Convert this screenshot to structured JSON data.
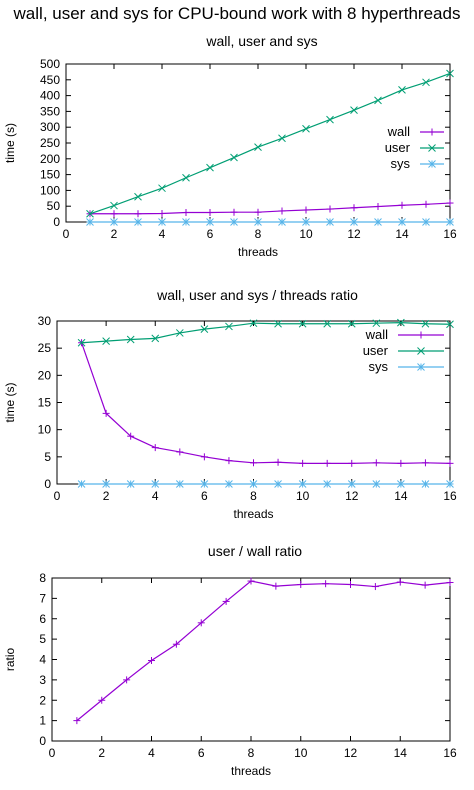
{
  "title": "wall, user and sys for CPU-bound work with 8 hyperthreads",
  "colors": {
    "wall": "#9400d3",
    "user": "#009e73",
    "sys": "#56b4e9"
  },
  "chart_data": [
    {
      "type": "line",
      "title": "wall, user and sys",
      "xlabel": "threads",
      "ylabel": "time (s)",
      "xlim": [
        0,
        16
      ],
      "ylim": [
        0,
        500
      ],
      "xticks": [
        0,
        2,
        4,
        6,
        8,
        10,
        12,
        14,
        16
      ],
      "yticks": [
        0,
        50,
        100,
        150,
        200,
        250,
        300,
        350,
        400,
        450,
        500
      ],
      "grid": false,
      "legend": "right",
      "x": [
        1,
        2,
        3,
        4,
        5,
        6,
        7,
        8,
        9,
        10,
        11,
        12,
        13,
        14,
        15,
        16
      ],
      "series": [
        {
          "name": "wall",
          "marker": "+",
          "color_key": "wall",
          "values": [
            26,
            26,
            26,
            27,
            30,
            30,
            31,
            31,
            35,
            38,
            41,
            45,
            49,
            53,
            56,
            60
          ]
        },
        {
          "name": "user",
          "marker": "x",
          "color_key": "user",
          "values": [
            26,
            52,
            80,
            107,
            140,
            172,
            204,
            237,
            265,
            295,
            324,
            354,
            385,
            418,
            442,
            470
          ]
        },
        {
          "name": "sys",
          "marker": "*",
          "color_key": "sys",
          "values": [
            0,
            0,
            0,
            0,
            0,
            0,
            0,
            0,
            0,
            0,
            0,
            0,
            0,
            0,
            0,
            0
          ]
        }
      ]
    },
    {
      "type": "line",
      "title": "wall, user and sys / threads ratio",
      "xlabel": "threads",
      "ylabel": "time (s)",
      "xlim": [
        0,
        16
      ],
      "ylim": [
        0,
        30
      ],
      "xticks": [
        0,
        2,
        4,
        6,
        8,
        10,
        12,
        14,
        16
      ],
      "yticks": [
        0,
        5,
        10,
        15,
        20,
        25,
        30
      ],
      "grid": false,
      "legend": "top-right",
      "x": [
        1,
        2,
        3,
        4,
        5,
        6,
        7,
        8,
        9,
        10,
        11,
        12,
        13,
        14,
        15,
        16
      ],
      "series": [
        {
          "name": "wall",
          "marker": "+",
          "color_key": "wall",
          "values": [
            26,
            13,
            8.8,
            6.7,
            5.9,
            5,
            4.3,
            3.9,
            4,
            3.8,
            3.8,
            3.8,
            3.9,
            3.8,
            3.9,
            3.8
          ]
        },
        {
          "name": "user",
          "marker": "x",
          "color_key": "user",
          "values": [
            26,
            26.3,
            26.6,
            26.8,
            27.8,
            28.5,
            29,
            29.6,
            29.5,
            29.5,
            29.5,
            29.5,
            29.6,
            29.7,
            29.5,
            29.4
          ]
        },
        {
          "name": "sys",
          "marker": "*",
          "color_key": "sys",
          "values": [
            0,
            0,
            0,
            0,
            0,
            0,
            0,
            0,
            0,
            0,
            0,
            0,
            0,
            0,
            0,
            0
          ]
        }
      ]
    },
    {
      "type": "line",
      "title": "user / wall ratio",
      "xlabel": "threads",
      "ylabel": "ratio",
      "xlim": [
        0,
        16
      ],
      "ylim": [
        0,
        8
      ],
      "xticks": [
        0,
        2,
        4,
        6,
        8,
        10,
        12,
        14,
        16
      ],
      "yticks": [
        0,
        1,
        2,
        3,
        4,
        5,
        6,
        7,
        8
      ],
      "grid": false,
      "legend": "none",
      "x": [
        1,
        2,
        3,
        4,
        5,
        6,
        7,
        8,
        9,
        10,
        11,
        12,
        13,
        14,
        15,
        16
      ],
      "series": [
        {
          "marker": "+",
          "color_key": "wall",
          "values": [
            1,
            2,
            3,
            3.95,
            4.75,
            5.8,
            6.85,
            7.85,
            7.6,
            7.68,
            7.72,
            7.68,
            7.58,
            7.8,
            7.65,
            7.78
          ]
        }
      ]
    }
  ]
}
